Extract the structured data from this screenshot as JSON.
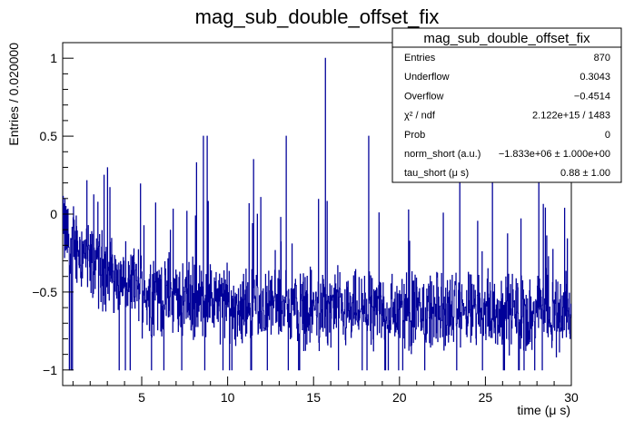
{
  "chart_data": {
    "type": "line",
    "title": "mag_sub_double_offset_fix",
    "xlabel": "time (μ s)",
    "ylabel": "Entries / 0.020000",
    "xlim": [
      0.4,
      30
    ],
    "ylim": [
      -1.1,
      1.1
    ],
    "x_ticks": [
      {
        "value": 5,
        "label": "5"
      },
      {
        "value": 10,
        "label": "10"
      },
      {
        "value": 15,
        "label": "15"
      },
      {
        "value": 20,
        "label": "20"
      },
      {
        "value": 25,
        "label": "25"
      },
      {
        "value": 30,
        "label": "30"
      }
    ],
    "y_ticks": [
      {
        "value": 1,
        "label": "1"
      },
      {
        "value": 0.5,
        "label": "0.5"
      },
      {
        "value": 0,
        "label": "0"
      },
      {
        "value": -0.5,
        "label": "−0.5"
      },
      {
        "value": -1,
        "label": "−1"
      }
    ],
    "series": [
      {
        "name": "mag_sub_double_offset_fix",
        "color": "#000099",
        "envelope_note": "noisy histogram, fluctuates around trend",
        "trend": [
          {
            "x": 0.4,
            "y": -0.1
          },
          {
            "x": 2,
            "y": -0.3
          },
          {
            "x": 5,
            "y": -0.5
          },
          {
            "x": 10,
            "y": -0.58
          },
          {
            "x": 20,
            "y": -0.62
          },
          {
            "x": 30,
            "y": -0.63
          }
        ],
        "spikes": [
          {
            "x": 0.6,
            "y": 0.05
          },
          {
            "x": 2.8,
            "y": 0.25
          },
          {
            "x": 8.2,
            "y": 0.33
          },
          {
            "x": 8.6,
            "y": 0.5
          },
          {
            "x": 8.8,
            "y": 0.5
          },
          {
            "x": 11.5,
            "y": 0.35
          },
          {
            "x": 13.4,
            "y": 0.5
          },
          {
            "x": 15.7,
            "y": 1.0
          },
          {
            "x": 18.2,
            "y": 0.5
          },
          {
            "x": 23.5,
            "y": 0.33
          },
          {
            "x": 25.4,
            "y": 0.3
          },
          {
            "x": 28.1,
            "y": 0.3
          }
        ]
      }
    ],
    "stats_box": {
      "title": "mag_sub_double_offset_fix",
      "rows": [
        {
          "label": "Entries",
          "value": "870"
        },
        {
          "label": "Underflow",
          "value": "0.3043"
        },
        {
          "label": "Overflow",
          "value": "−0.4514"
        },
        {
          "label": "χ² / ndf",
          "value": "2.122e+15 / 1483"
        },
        {
          "label": "Prob",
          "value": "0"
        },
        {
          "label": "norm_short (a.u.)",
          "value": "−1.833e+06 ± 1.000e+00"
        },
        {
          "label": "tau_short (μ s)",
          "value": "0.88 ± 1.00"
        }
      ]
    }
  }
}
